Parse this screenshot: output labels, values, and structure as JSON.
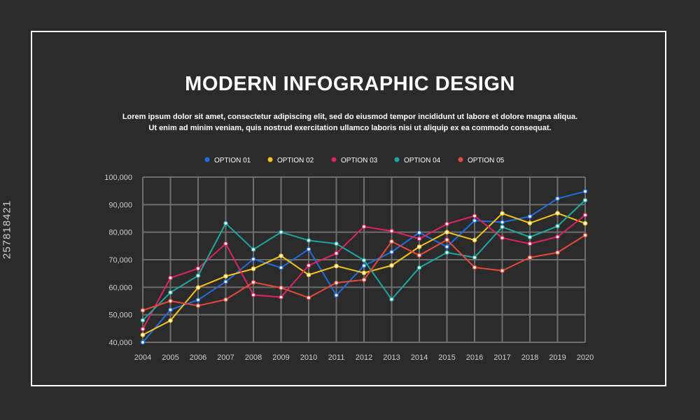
{
  "side_id": "257818421",
  "header": {
    "title": "MODERN INFOGRAPHIC DESIGN",
    "subtitle_line1": "Lorem ipsum dolor sit amet, consectetur adipiscing elit, sed do eiusmod tempor incididunt ut labore et dolore magna aliqua.",
    "subtitle_line2": "Ut enim ad minim veniam, quis nostrud exercitation ullamco laboris nisi ut aliquip ex ea commodo consequat."
  },
  "colors": {
    "background": "#2b2b2b",
    "grid": "#6e6e6e",
    "text": "#ffffff",
    "tick_text": "#d0d0d0"
  },
  "chart_data": {
    "type": "line",
    "legend_position": "top-center",
    "grid": true,
    "x": [
      "2004",
      "2005",
      "2006",
      "2007",
      "2008",
      "2009",
      "2010",
      "2011",
      "2012",
      "2013",
      "2014",
      "2015",
      "2016",
      "2017",
      "2018",
      "2019",
      "2020"
    ],
    "ylim": [
      40000,
      100000
    ],
    "yticks": [
      "40,000",
      "50,000",
      "60,000",
      "70,000",
      "80,000",
      "90,000",
      "100,000"
    ],
    "series": [
      {
        "name": "OPTION 01",
        "color": "#1f6fe0",
        "values": [
          40000,
          51800,
          55400,
          62000,
          70200,
          67100,
          73800,
          57100,
          67800,
          72800,
          79800,
          74700,
          84200,
          83600,
          85700,
          92200,
          94800
        ]
      },
      {
        "name": "OPTION 02",
        "color": "#f6c31c",
        "values": [
          42700,
          47900,
          59900,
          64000,
          66700,
          71400,
          64500,
          67700,
          65200,
          67900,
          74700,
          80000,
          77100,
          86800,
          83300,
          86900,
          83200
        ]
      },
      {
        "name": "OPTION 03",
        "color": "#e0245e",
        "values": [
          44800,
          63400,
          66800,
          75800,
          57200,
          56400,
          67900,
          72300,
          82000,
          80400,
          77600,
          83000,
          85900,
          77900,
          75800,
          78300,
          86200
        ]
      },
      {
        "name": "OPTION 04",
        "color": "#1ea8a4",
        "values": [
          48000,
          58100,
          64200,
          83200,
          73700,
          80000,
          77000,
          75800,
          69800,
          55600,
          67100,
          72600,
          70800,
          81900,
          78200,
          82200,
          91600
        ]
      },
      {
        "name": "OPTION 05",
        "color": "#e8493a",
        "values": [
          51600,
          55000,
          53300,
          55500,
          61800,
          59800,
          56200,
          61600,
          62700,
          76600,
          71600,
          77200,
          67200,
          66000,
          70800,
          72600,
          78900
        ]
      }
    ]
  }
}
